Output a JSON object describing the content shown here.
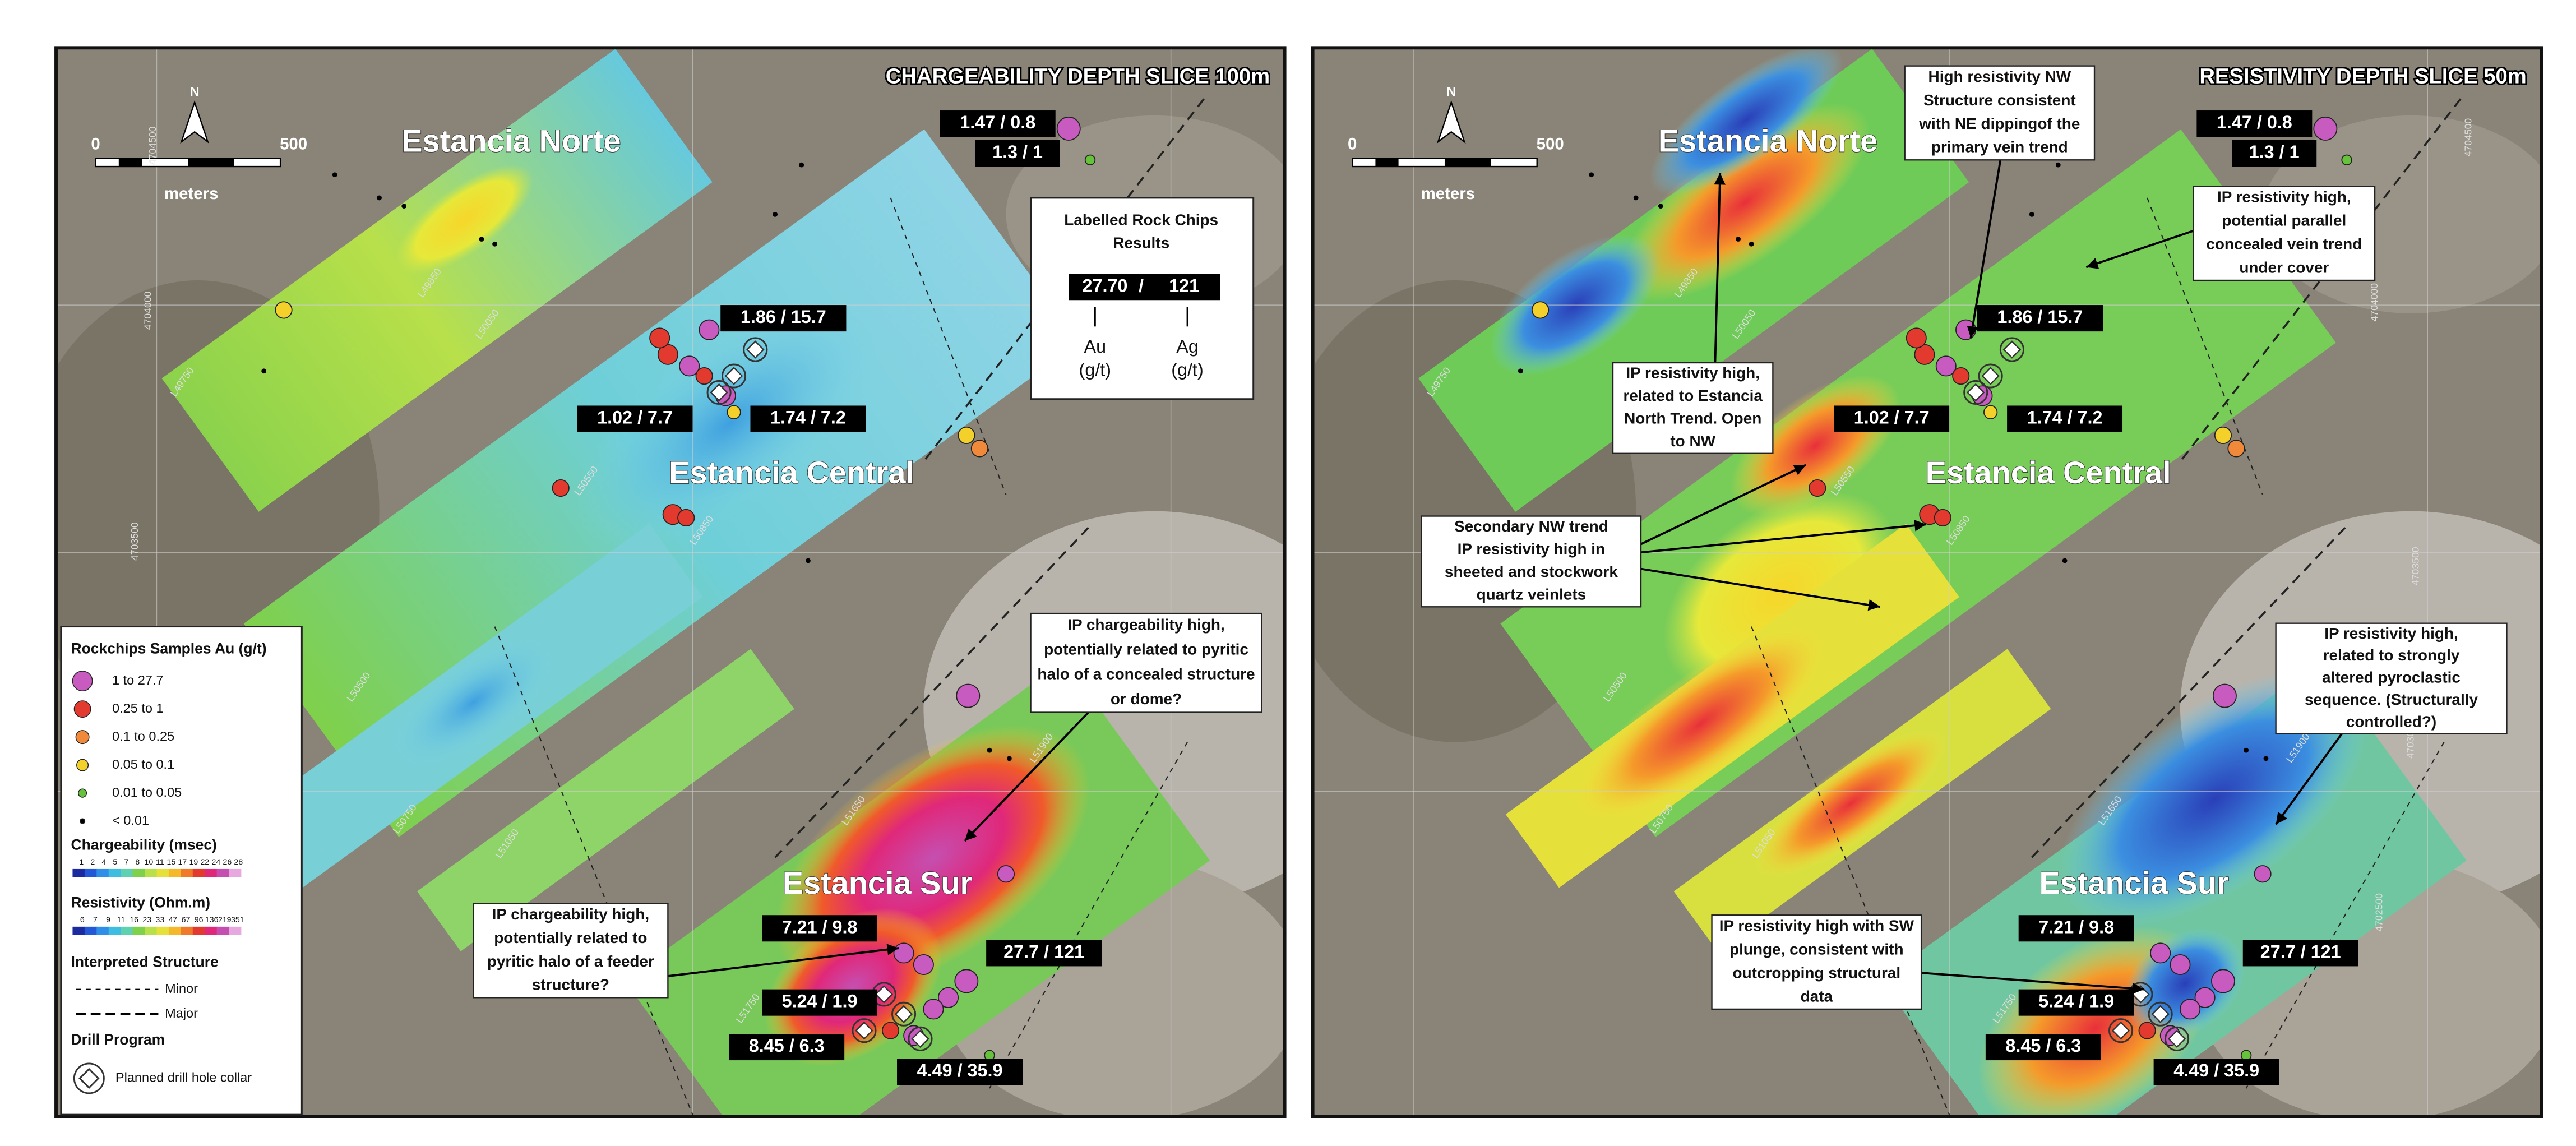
{
  "panels": [
    {
      "title": "CHARGEABILITY DEPTH SLICE 100m",
      "scale": {
        "start": "0",
        "end": "500",
        "unit": "meters",
        "north": "N"
      },
      "areas": [
        "Estancia Norte",
        "Estancia Central",
        "Estancia Sur"
      ],
      "sample_labels": [
        "1.47 / 0.8",
        "1.3 / 1",
        "1.86 / 15.7",
        "1.02 / 7.7",
        "1.74 / 7.2",
        "7.21 / 9.8",
        "27.7 / 121",
        "5.24 / 1.9",
        "8.45 / 6.3",
        "4.49 / 35.9"
      ],
      "annotations": [
        {
          "lines": [
            "IP chargeability high,",
            "potentially related to pyritic",
            "halo of a concealed structure",
            "or dome?"
          ]
        },
        {
          "lines": [
            "IP chargeability high,",
            "potentially related to",
            "pyritic halo of a feeder",
            "structure?"
          ]
        }
      ],
      "line_labels": [
        "L49850",
        "L50050",
        "L49750",
        "L50550",
        "L50850",
        "L50500",
        "L50750",
        "L51050",
        "L51650",
        "L51750",
        "L51900"
      ],
      "northings": [
        "4704500",
        "4704000",
        "4703500"
      ],
      "rock_chip_key": {
        "title": [
          "Labelled Rock Chips",
          "Results"
        ],
        "example": [
          "27.70",
          "/",
          "121"
        ],
        "au": [
          "Au",
          "(g/t)"
        ],
        "ag": [
          "Ag",
          "(g/t)"
        ]
      },
      "legend": {
        "samples_title": "Rockchips Samples Au (g/t)",
        "samples": [
          "1 to 27.7",
          "0.25 to 1",
          "0.1 to 0.25",
          "0.05 to 0.1",
          "0.01 to 0.05",
          "< 0.01"
        ],
        "chargeability_title": "Chargeability (msec)",
        "chargeability_ticks": [
          1,
          2,
          4,
          5,
          7,
          8,
          10,
          11,
          15,
          17,
          19,
          22,
          24,
          26,
          28
        ],
        "resistivity_title": "Resistivity (Ohm.m)",
        "resistivity_ticks": [
          6,
          7,
          9,
          11,
          16,
          23,
          33,
          47,
          67,
          96,
          136,
          219,
          351
        ],
        "structure_title": "Interpreted Structure",
        "structures": [
          "Minor",
          "Major"
        ],
        "drill_title": "Drill Program",
        "drill_item": "Planned drill hole collar"
      }
    },
    {
      "title": "RESISTIVITY DEPTH SLICE 50m",
      "scale": {
        "start": "0",
        "end": "500",
        "unit": "meters",
        "north": "N"
      },
      "areas": [
        "Estancia Norte",
        "Estancia Central",
        "Estancia Sur"
      ],
      "sample_labels": [
        "1.47 / 0.8",
        "1.3 / 1",
        "1.86 / 15.7",
        "1.02 / 7.7",
        "1.74 / 7.2",
        "7.21 / 9.8",
        "27.7 / 121",
        "5.24 / 1.9",
        "8.45 / 6.3",
        "4.49 / 35.9"
      ],
      "annotations": [
        {
          "lines": [
            "High resistivity NW",
            "Structure consistent",
            "with NE dippingof the",
            "primary vein trend"
          ]
        },
        {
          "lines": [
            "IP resistivity high,",
            "potential parallel",
            "concealed vein trend",
            "under cover"
          ]
        },
        {
          "lines": [
            "IP resistivity high,",
            "related to Estancia",
            "North Trend. Open",
            "to NW"
          ]
        },
        {
          "lines": [
            "Secondary NW trend",
            "IP resistivity high in",
            "sheeted and stockwork",
            "quartz veinlets"
          ]
        },
        {
          "lines": [
            "IP resistivity high,",
            "related to strongly",
            "altered pyroclastic",
            "sequence. (Structurally",
            "controlled?)"
          ]
        },
        {
          "lines": [
            "IP resistivity high with SW",
            "plunge, consistent with",
            "outcropping structural",
            "data"
          ]
        }
      ],
      "line_labels": [
        "L49850",
        "L50050",
        "L49750",
        "L50550",
        "L50850",
        "L50500",
        "L50750",
        "L51050",
        "L51650",
        "L51750",
        "L51900"
      ],
      "northings": [
        "4704500",
        "4704000",
        "4703500",
        "4703000",
        "4702500"
      ]
    }
  ]
}
